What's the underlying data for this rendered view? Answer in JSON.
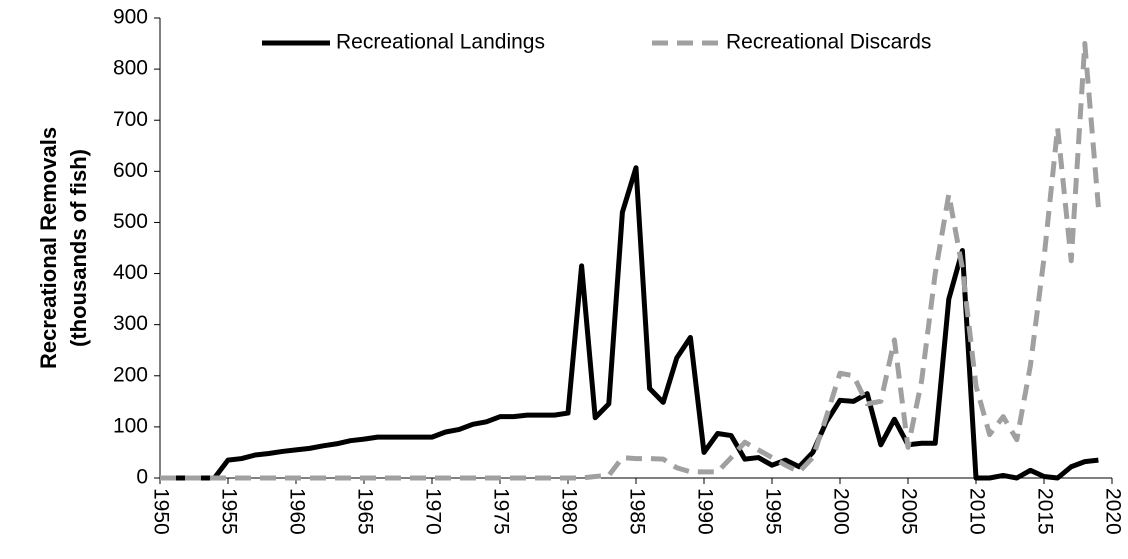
{
  "chart_data": {
    "type": "line",
    "y_label": [
      "Recreational Removals",
      "(thousands of fish)"
    ],
    "x": [
      1950,
      1951,
      1952,
      1953,
      1954,
      1955,
      1956,
      1957,
      1958,
      1959,
      1960,
      1961,
      1962,
      1963,
      1964,
      1965,
      1966,
      1967,
      1968,
      1969,
      1970,
      1971,
      1972,
      1973,
      1974,
      1975,
      1976,
      1977,
      1978,
      1979,
      1980,
      1981,
      1982,
      1983,
      1984,
      1985,
      1986,
      1987,
      1988,
      1989,
      1990,
      1991,
      1992,
      1993,
      1994,
      1995,
      1996,
      1997,
      1998,
      1999,
      2000,
      2001,
      2002,
      2003,
      2004,
      2005,
      2006,
      2007,
      2008,
      2009,
      2010,
      2011,
      2012,
      2013,
      2014,
      2015,
      2016,
      2017,
      2018,
      2019
    ],
    "series": [
      {
        "name": "Recreational Landings",
        "color": "#000000",
        "dash": false,
        "values": [
          0,
          0,
          0,
          0,
          0,
          35,
          38,
          45,
          48,
          52,
          55,
          58,
          63,
          67,
          73,
          76,
          80,
          80,
          80,
          80,
          80,
          90,
          95,
          105,
          110,
          120,
          120,
          123,
          123,
          123,
          127,
          415,
          118,
          145,
          520,
          607,
          175,
          148,
          235,
          275,
          50,
          87,
          83,
          37,
          40,
          25,
          35,
          22,
          50,
          110,
          152,
          150,
          165,
          65,
          115,
          65,
          68,
          68,
          350,
          445,
          0,
          0,
          5,
          0,
          15,
          3,
          0,
          22,
          32,
          35
        ]
      },
      {
        "name": "Recreational Discards",
        "color": "#a0a0a0",
        "dash": true,
        "values": [
          0,
          0,
          0,
          0,
          0,
          0,
          0,
          0,
          0,
          0,
          0,
          0,
          0,
          0,
          0,
          0,
          0,
          0,
          0,
          0,
          0,
          0,
          0,
          0,
          0,
          0,
          0,
          0,
          0,
          0,
          0,
          0,
          3,
          5,
          40,
          38,
          38,
          37,
          20,
          12,
          12,
          12,
          40,
          70,
          55,
          40,
          25,
          12,
          40,
          120,
          205,
          200,
          145,
          150,
          270,
          60,
          190,
          400,
          555,
          410,
          180,
          85,
          120,
          75,
          220,
          430,
          685,
          425,
          850,
          530
        ]
      }
    ],
    "xlim": [
      1950,
      2020
    ],
    "xticks": [
      1950,
      1955,
      1960,
      1965,
      1970,
      1975,
      1980,
      1985,
      1990,
      1995,
      2000,
      2005,
      2010,
      2015,
      2020
    ],
    "ylim": [
      0,
      900
    ],
    "yticks": [
      0,
      100,
      200,
      300,
      400,
      500,
      600,
      700,
      800,
      900
    ],
    "grid": false,
    "legend": "top"
  }
}
